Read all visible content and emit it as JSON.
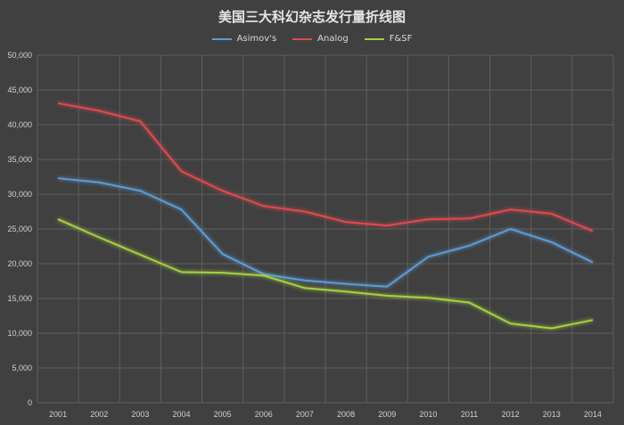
{
  "chart_data": {
    "type": "line",
    "title": "美国三大科幻杂志发行量折线图",
    "categories": [
      "2001",
      "2002",
      "2003",
      "2004",
      "2005",
      "2006",
      "2007",
      "2008",
      "2009",
      "2010",
      "2011",
      "2012",
      "2013",
      "2014"
    ],
    "ylim": [
      0,
      50000
    ],
    "yticks": [
      0,
      5000,
      10000,
      15000,
      20000,
      25000,
      30000,
      35000,
      40000,
      45000,
      50000
    ],
    "ytick_labels": [
      "0",
      "5,000",
      "10,000",
      "15,000",
      "20,000",
      "25,000",
      "30,000",
      "35,000",
      "40,000",
      "45,000",
      "50,000"
    ],
    "grid": true,
    "legend_position": "top",
    "series": [
      {
        "name": "Asimov's",
        "color": "#5b9bd5",
        "values": [
          32300,
          31700,
          30500,
          27800,
          21400,
          18500,
          17600,
          17100,
          16700,
          21000,
          22600,
          25000,
          23100,
          20200
        ]
      },
      {
        "name": "Analog",
        "color": "#e0494d",
        "values": [
          43100,
          42000,
          40500,
          33300,
          30500,
          28300,
          27500,
          26000,
          25500,
          26400,
          26500,
          27800,
          27200,
          24700
        ]
      },
      {
        "name": "F&SF",
        "color": "#a5d13f",
        "values": [
          26400,
          23800,
          21300,
          18800,
          18700,
          18300,
          16500,
          16000,
          15400,
          15100,
          14400,
          11400,
          10700,
          11900
        ]
      }
    ]
  }
}
